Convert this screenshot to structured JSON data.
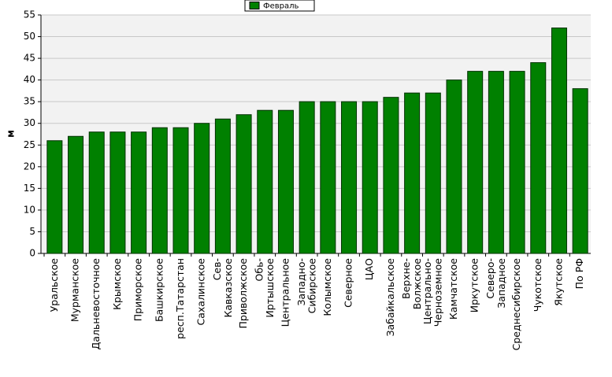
{
  "chart_data": {
    "type": "bar",
    "y_label": "м",
    "series": [
      {
        "name": "Февраль",
        "color": "#008000",
        "values": [
          26,
          27,
          28,
          28,
          28,
          29,
          29,
          30,
          31,
          32,
          33,
          33,
          35,
          35,
          35,
          35,
          36,
          37,
          37,
          40,
          42,
          42,
          42,
          44,
          52,
          38
        ]
      }
    ],
    "categories": [
      "Уральское",
      "Мурманское",
      "Дальневосточное",
      "Крымское",
      "Приморское",
      "Башкирское",
      "респ.Татарстан",
      "Сахалинское",
      "Сев-\nКавказское",
      "Приволжское",
      "Обь-\nИртышское",
      "Центральное",
      "Западно-\nСибирское",
      "Колымское",
      "Северное",
      "ЦАО",
      "Забайкальское",
      "Верхне-\nВолжское",
      "Центрально-\nЧерноземное",
      "Камчатское",
      "Иркутское",
      "Северо-\nЗападное",
      "Среднесибирское",
      "Чукотское",
      "Якутское",
      "По РФ"
    ],
    "ylim": [
      0,
      55
    ],
    "yticks": [
      0,
      5,
      10,
      15,
      20,
      25,
      30,
      35,
      40,
      45,
      50,
      55
    ],
    "grid": true
  }
}
